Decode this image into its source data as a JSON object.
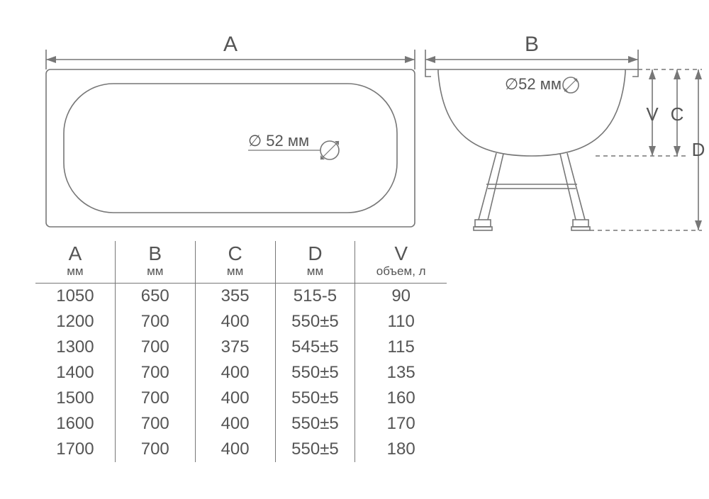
{
  "stroke_color": "#777777",
  "text_color": "#555555",
  "stroke_width": 1.6,
  "background": "#ffffff",
  "top_view": {
    "dim_label": "A",
    "diameter_label": "∅ 52 мм"
  },
  "side_view": {
    "dim_top_label": "B",
    "diameter_label": "∅52 мм",
    "dim_V": "V",
    "dim_C": "C",
    "dim_D": "D"
  },
  "table": {
    "columns": [
      {
        "title": "A",
        "unit": "мм"
      },
      {
        "title": "B",
        "unit": "мм"
      },
      {
        "title": "C",
        "unit": "мм"
      },
      {
        "title": "D",
        "unit": "мм"
      },
      {
        "title": "V",
        "unit": "объем, л"
      }
    ],
    "rows": [
      [
        "1050",
        "650",
        "355",
        "515-5",
        "90"
      ],
      [
        "1200",
        "700",
        "400",
        "550±5",
        "110"
      ],
      [
        "1300",
        "700",
        "375",
        "545±5",
        "115"
      ],
      [
        "1400",
        "700",
        "400",
        "550±5",
        "135"
      ],
      [
        "1500",
        "700",
        "400",
        "550±5",
        "160"
      ],
      [
        "1600",
        "700",
        "400",
        "550±5",
        "170"
      ],
      [
        "1700",
        "700",
        "400",
        "550±5",
        "180"
      ]
    ]
  }
}
